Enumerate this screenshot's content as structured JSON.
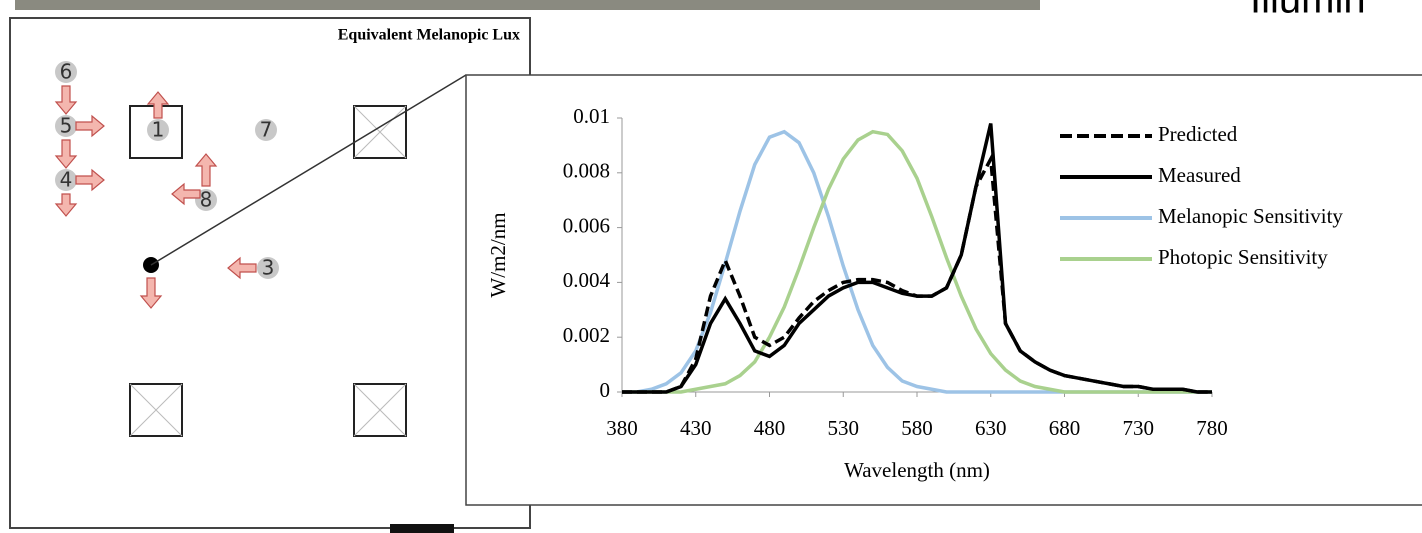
{
  "floor_plan": {
    "title": "Equivalent Melanopic Lux",
    "labels": [
      "6",
      "5",
      "1",
      "7",
      "4",
      "8",
      "3"
    ]
  },
  "side_text": "Illumin",
  "chart_data": {
    "type": "line",
    "y_label": "W/m2/nm",
    "x_label": "Wavelength (nm)",
    "x": [
      380,
      390,
      400,
      410,
      420,
      430,
      440,
      450,
      460,
      470,
      480,
      490,
      500,
      510,
      520,
      530,
      540,
      550,
      560,
      570,
      580,
      590,
      600,
      610,
      620,
      630,
      640,
      650,
      660,
      670,
      680,
      690,
      700,
      710,
      720,
      730,
      740,
      750,
      760,
      770,
      780
    ],
    "series": [
      {
        "name": "Predicted",
        "color": "#000000",
        "line_style": "dashed",
        "values": [
          0,
          0,
          0,
          0,
          0.0002,
          0.0012,
          0.0035,
          0.0048,
          0.0035,
          0.002,
          0.0017,
          0.002,
          0.0027,
          0.0033,
          0.0037,
          0.004,
          0.0041,
          0.0041,
          0.004,
          0.0037,
          0.0035,
          0.0035,
          0.0038,
          0.005,
          0.0075,
          0.0085,
          0.0025,
          0.0015,
          0.0011,
          0.0008,
          0.0006,
          0.0005,
          0.0004,
          0.0003,
          0.0002,
          0.0002,
          0.0001,
          0.0001,
          0.0001,
          0,
          0
        ]
      },
      {
        "name": "Measured",
        "color": "#000000",
        "line_style": "solid",
        "values": [
          0,
          0,
          0,
          0,
          0.0002,
          0.001,
          0.0025,
          0.0034,
          0.0025,
          0.0015,
          0.0013,
          0.0017,
          0.0025,
          0.003,
          0.0035,
          0.0038,
          0.004,
          0.004,
          0.0038,
          0.0036,
          0.0035,
          0.0035,
          0.0038,
          0.005,
          0.0075,
          0.0098,
          0.0025,
          0.0015,
          0.0011,
          0.0008,
          0.0006,
          0.0005,
          0.0004,
          0.0003,
          0.0002,
          0.0002,
          0.0001,
          0.0001,
          0.0001,
          0,
          0
        ]
      },
      {
        "name": "Melanopic Sensitivity",
        "color": "#9dc3e6",
        "line_style": "solid",
        "values": [
          0,
          0,
          0.0001,
          0.0003,
          0.0007,
          0.0015,
          0.0029,
          0.0047,
          0.0066,
          0.0083,
          0.0093,
          0.0095,
          0.0091,
          0.008,
          0.0064,
          0.0046,
          0.003,
          0.0017,
          0.0009,
          0.0004,
          0.0002,
          0.0001,
          0,
          0,
          0,
          0,
          0,
          0,
          0,
          0,
          0,
          0,
          0,
          0,
          0,
          0,
          0,
          0,
          0,
          0,
          0
        ]
      },
      {
        "name": "Photopic Sensitivity",
        "color": "#a9d18e",
        "line_style": "solid",
        "values": [
          0,
          0,
          0,
          0,
          0,
          0.0001,
          0.0002,
          0.0003,
          0.0006,
          0.0011,
          0.002,
          0.0031,
          0.0045,
          0.006,
          0.0074,
          0.0085,
          0.0092,
          0.0095,
          0.0094,
          0.0088,
          0.0078,
          0.0064,
          0.0049,
          0.0035,
          0.0023,
          0.0014,
          0.0008,
          0.0004,
          0.0002,
          0.0001,
          0,
          0,
          0,
          0,
          0,
          0,
          0,
          0,
          0,
          0,
          0
        ]
      }
    ],
    "xlim": [
      380,
      780
    ],
    "xticks": [
      380,
      430,
      480,
      530,
      580,
      630,
      680,
      730,
      780
    ],
    "ylim": [
      0,
      0.01
    ],
    "yticks": [
      0,
      0.002,
      0.004,
      0.006,
      0.008,
      0.01
    ]
  }
}
